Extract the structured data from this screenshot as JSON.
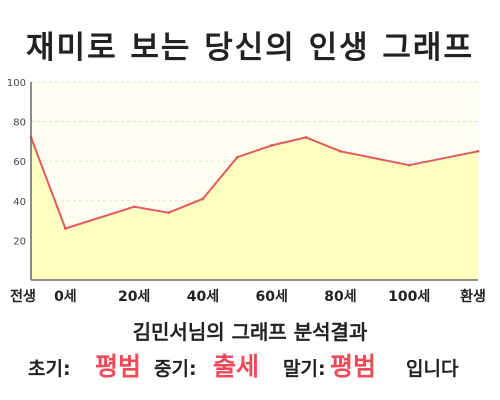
{
  "title": "재미로 보는 당신의 인생 그래프",
  "chart_data": {
    "type": "area",
    "title": "재미로 보는 당신의 인생 그래프",
    "x_labels": [
      "전생",
      "0세",
      "20세",
      "40세",
      "60세",
      "80세",
      "100세",
      "환생"
    ],
    "x": [
      -10,
      0,
      20,
      30,
      40,
      50,
      60,
      70,
      80,
      100,
      120
    ],
    "y": [
      72,
      26,
      37,
      34,
      41,
      62,
      68,
      72,
      65,
      58,
      65
    ],
    "ylim": [
      0,
      100
    ],
    "y_ticks": [
      20,
      40,
      60,
      80,
      100
    ],
    "grid": true,
    "colors": {
      "line": "#e05a60",
      "fill": "#ffffc0",
      "plot_background": "#fffff0",
      "grid": "#dddddd",
      "axis": "#666666"
    }
  },
  "result": {
    "heading": "김민서님의 그래프 분석결과",
    "early_label": "초기:",
    "early_value": "평범",
    "middle_label": "중기:",
    "middle_value": "출세",
    "late_label": "말기:",
    "late_value": "평범",
    "ending": "입니다",
    "highlight_color": "#ef4a58"
  }
}
